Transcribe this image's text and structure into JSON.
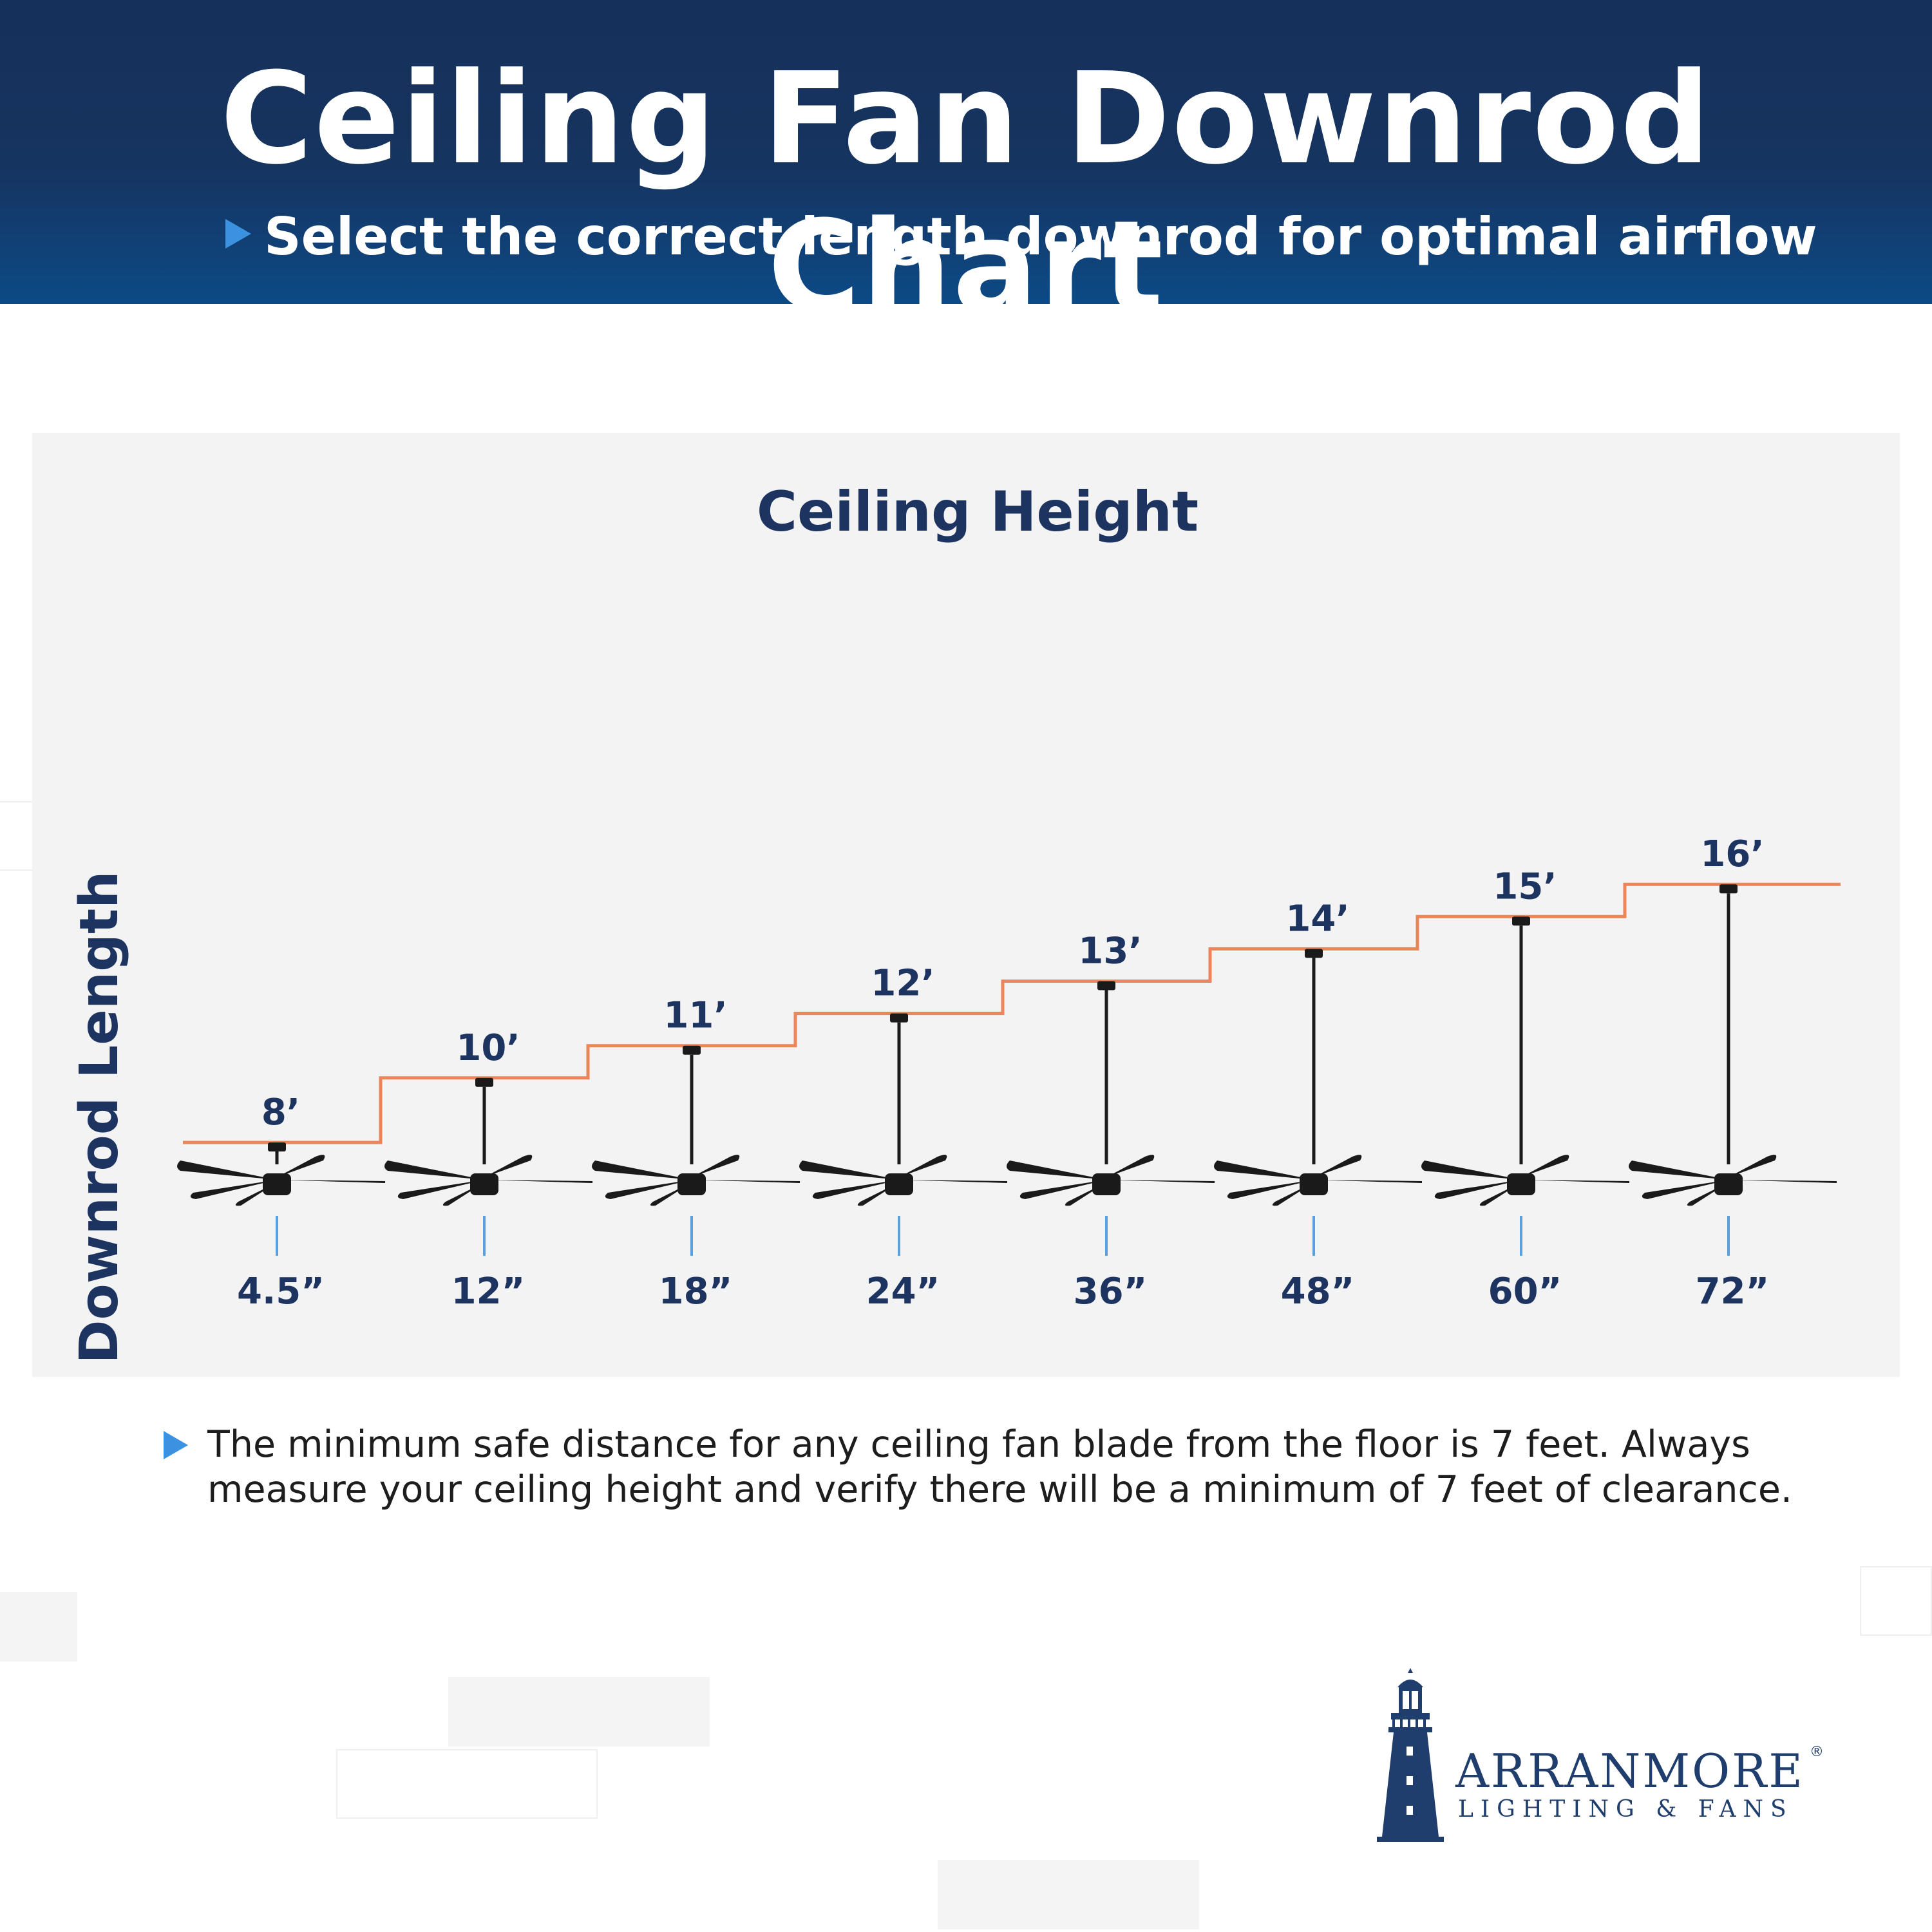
{
  "header": {
    "title": "Ceiling Fan Downrod Chart",
    "subtitle": "Select the correct length downrod for optimal airflow"
  },
  "colors": {
    "header_dark": "#15305a",
    "header_light": "#0c4a86",
    "step_line": "#ec8559",
    "label_text": "#1d3461",
    "downrod_tick": "#5aa0de",
    "arrow": "#3a92e0",
    "fan": "#1a1a1a"
  },
  "chart_data": {
    "type": "step",
    "title": "Ceiling Height",
    "ylabel": "Downrod Length",
    "categories": [
      "8’",
      "10’",
      "11’",
      "12’",
      "13’",
      "14’",
      "15’",
      "16’"
    ],
    "ceiling_height_ft": [
      8,
      10,
      11,
      12,
      13,
      14,
      15,
      16
    ],
    "downrod_in": [
      4.5,
      12,
      18,
      24,
      36,
      48,
      60,
      72
    ],
    "downrod_labels": [
      "4.5”",
      "12”",
      "18”",
      "24”",
      "36”",
      "48”",
      "60”",
      "72”"
    ]
  },
  "note": {
    "text": "The minimum safe distance for any ceiling fan blade from the floor is 7 feet.  Always measure your ceiling height and verify there will be a minimum of 7 feet of clearance."
  },
  "logo": {
    "name": "ARRANMORE",
    "registered": "®",
    "tagline": "LIGHTING & FANS",
    "icon": "lighthouse-icon"
  }
}
